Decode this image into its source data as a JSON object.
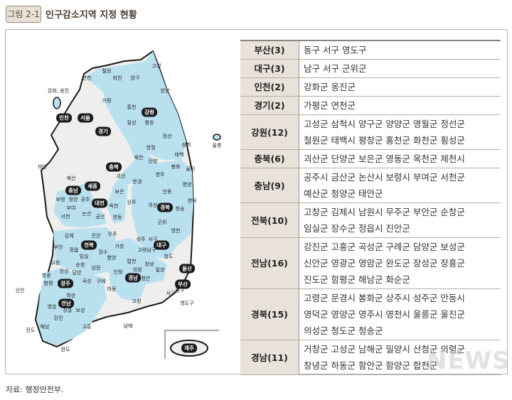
{
  "header": {
    "figure_label": "그림 2-1",
    "title": "인구감소지역 지정 현황"
  },
  "colors": {
    "designated": "#b9e0ef",
    "other": "#eeeeec",
    "badge_bg": "#e9e0d6",
    "table_key_bg": "#e8e2da"
  },
  "map": {
    "province_badges": [
      "서울",
      "인천",
      "경기",
      "강원",
      "충북",
      "충남",
      "세종",
      "대전",
      "전북",
      "광주",
      "전남",
      "대구",
      "경북",
      "경남",
      "울산",
      "부산",
      "제주"
    ],
    "district_labels": [
      "고성",
      "연천",
      "철원",
      "화천",
      "양구",
      "양양",
      "강화, 옹진",
      "가평",
      "홍천",
      "횡성",
      "평창",
      "정선",
      "삼척",
      "울릉",
      "영월",
      "태백",
      "제천",
      "단양",
      "태안",
      "괴산",
      "봉화",
      "울진",
      "영주",
      "문경",
      "예산",
      "영양",
      "안동",
      "보령",
      "청양",
      "공주",
      "보은",
      "옥천",
      "상주",
      "의성",
      "청송",
      "영덕",
      "부여",
      "논산",
      "서천",
      "금산",
      "영동",
      "군위",
      "영천",
      "김제",
      "진안",
      "무주",
      "성주",
      "서구",
      "부안",
      "정읍",
      "장수",
      "거창",
      "고령",
      "남구",
      "청도",
      "고창",
      "임실",
      "함양",
      "합천",
      "창녕",
      "순창",
      "남원",
      "산청",
      "의령",
      "밀양",
      "장성",
      "담양",
      "영광",
      "함안",
      "함평",
      "곡성",
      "구례",
      "신안",
      "하동",
      "동구",
      "서구",
      "화순",
      "고성",
      "영도구",
      "영암",
      "장흥",
      "보성",
      "남해",
      "강진",
      "해남",
      "고흥",
      "진도",
      "완도"
    ]
  },
  "table": [
    {
      "region": "부산(3)",
      "lines": [
        "동구 서구 영도구"
      ]
    },
    {
      "region": "대구(3)",
      "lines": [
        "남구 서구 군위군"
      ]
    },
    {
      "region": "인천(2)",
      "lines": [
        "강화군 옹진군"
      ]
    },
    {
      "region": "경기(2)",
      "lines": [
        "가평군 연천군"
      ]
    },
    {
      "region": "강원(12)",
      "lines": [
        "고성군 삼척시 양구군 양양군 영월군 정선군",
        "철원군 태백시 평창군 홍천군 화천군 횡성군"
      ]
    },
    {
      "region": "충북(6)",
      "lines": [
        "괴산군 단양군 보은군 영동군 옥천군 제천시"
      ]
    },
    {
      "region": "충남(9)",
      "lines": [
        "공주시 금산군 논산시 보령시 부여군 서천군",
        "예산군 청양군 태안군"
      ]
    },
    {
      "region": "전북(10)",
      "lines": [
        "고창군 김제시 남원시 무주군 부안군 순창군",
        "임실군 장수군 정읍시 진안군"
      ]
    },
    {
      "region": "전남(16)",
      "lines": [
        "강진군 고흥군 곡성군 구례군 담양군 보성군",
        "신안군 영광군 영암군 완도군 장성군 장흥군",
        "진도군 함평군 해남군 화순군"
      ]
    },
    {
      "region": "경북(15)",
      "lines": [
        "고령군 문경시 봉화군 상주시 성주군 안동시",
        "영덕군 영양군 영주시 영천시 울릉군 울진군",
        "의성군 청도군 청송군"
      ]
    },
    {
      "region": "경남(11)",
      "lines": [
        "거창군 고성군 남해군 밀양시 산청군 의령군",
        "창녕군 하동군 함안군 함양군 합천군"
      ]
    }
  ],
  "source": "자료: 행정안전부.",
  "watermark": "뉴시스"
}
